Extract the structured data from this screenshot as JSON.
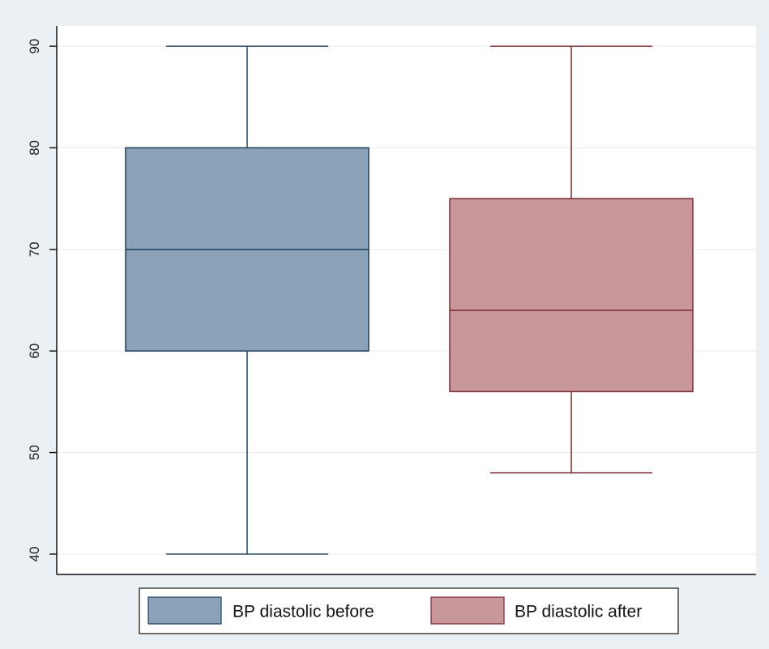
{
  "chart_data": {
    "type": "box",
    "title": "",
    "xlabel": "",
    "ylabel": "",
    "ylim": [
      38,
      92
    ],
    "yticks": [
      "40",
      "50",
      "60",
      "70",
      "80",
      "90"
    ],
    "grid": true,
    "legend_position": "bottom",
    "series": [
      {
        "name": "BP diastolic before",
        "color": "#8ca2b9",
        "line_color": "#1f3f5f",
        "min": 40,
        "q1": 60,
        "median": 70,
        "q3": 80,
        "max": 90
      },
      {
        "name": "BP diastolic after",
        "color": "#c9969b",
        "line_color": "#7a2a33",
        "min": 48,
        "q1": 56,
        "median": 64,
        "q3": 75,
        "max": 90
      }
    ],
    "colors": {
      "background": "#eaf0f3",
      "plot_bg": "#ffffff",
      "grid": "#e4eaee"
    }
  }
}
